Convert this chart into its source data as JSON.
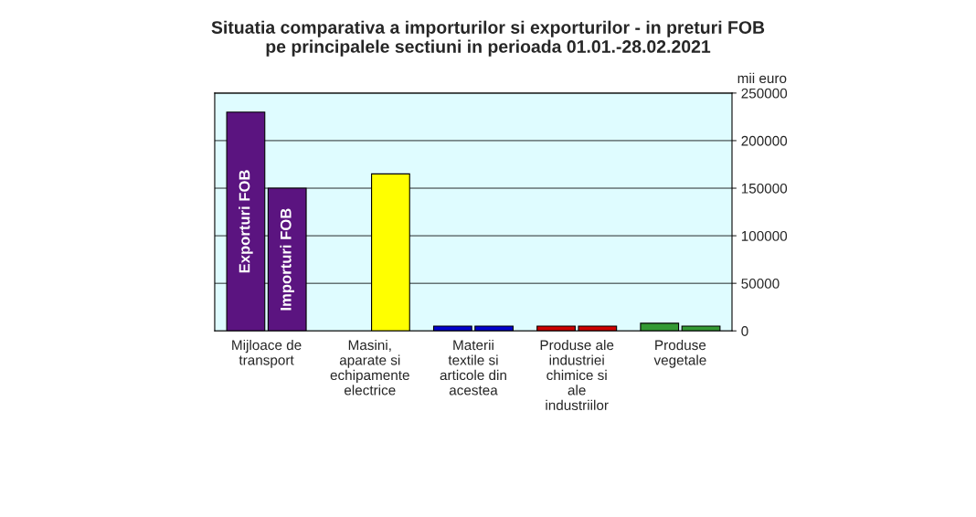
{
  "chart_data": {
    "type": "bar",
    "title": "Situatia comparativa a importurilor si exporturilor - in preturi FOB\npe principalele sectiuni in perioada 01.01.-28.02.2021",
    "ylabel": "mii euro",
    "categories": [
      "Mijloace de transport",
      "Masini, aparate si echipamente electrice",
      "Materii textile si articole din acestea",
      "Produse ale industriei chimice si ale industriilor",
      "Produse vegetale"
    ],
    "series": [
      {
        "name": "Exporturi FOB",
        "colors": [
          "#5b1480",
          "#ffff00",
          "#0000cc",
          "#cc0000",
          "#339933"
        ],
        "values": [
          230000,
          null,
          5000,
          5000,
          8000
        ]
      },
      {
        "name": "Importuri FOB",
        "colors": [
          "#5b1480",
          "#ffff00",
          "#0000cc",
          "#cc0000",
          "#339933"
        ],
        "values": [
          150000,
          165000,
          5000,
          5000,
          5000
        ]
      }
    ],
    "ylim": [
      0,
      250000
    ],
    "yticks": [
      0,
      50000,
      100000,
      150000,
      200000,
      250000
    ],
    "grid": "y"
  }
}
